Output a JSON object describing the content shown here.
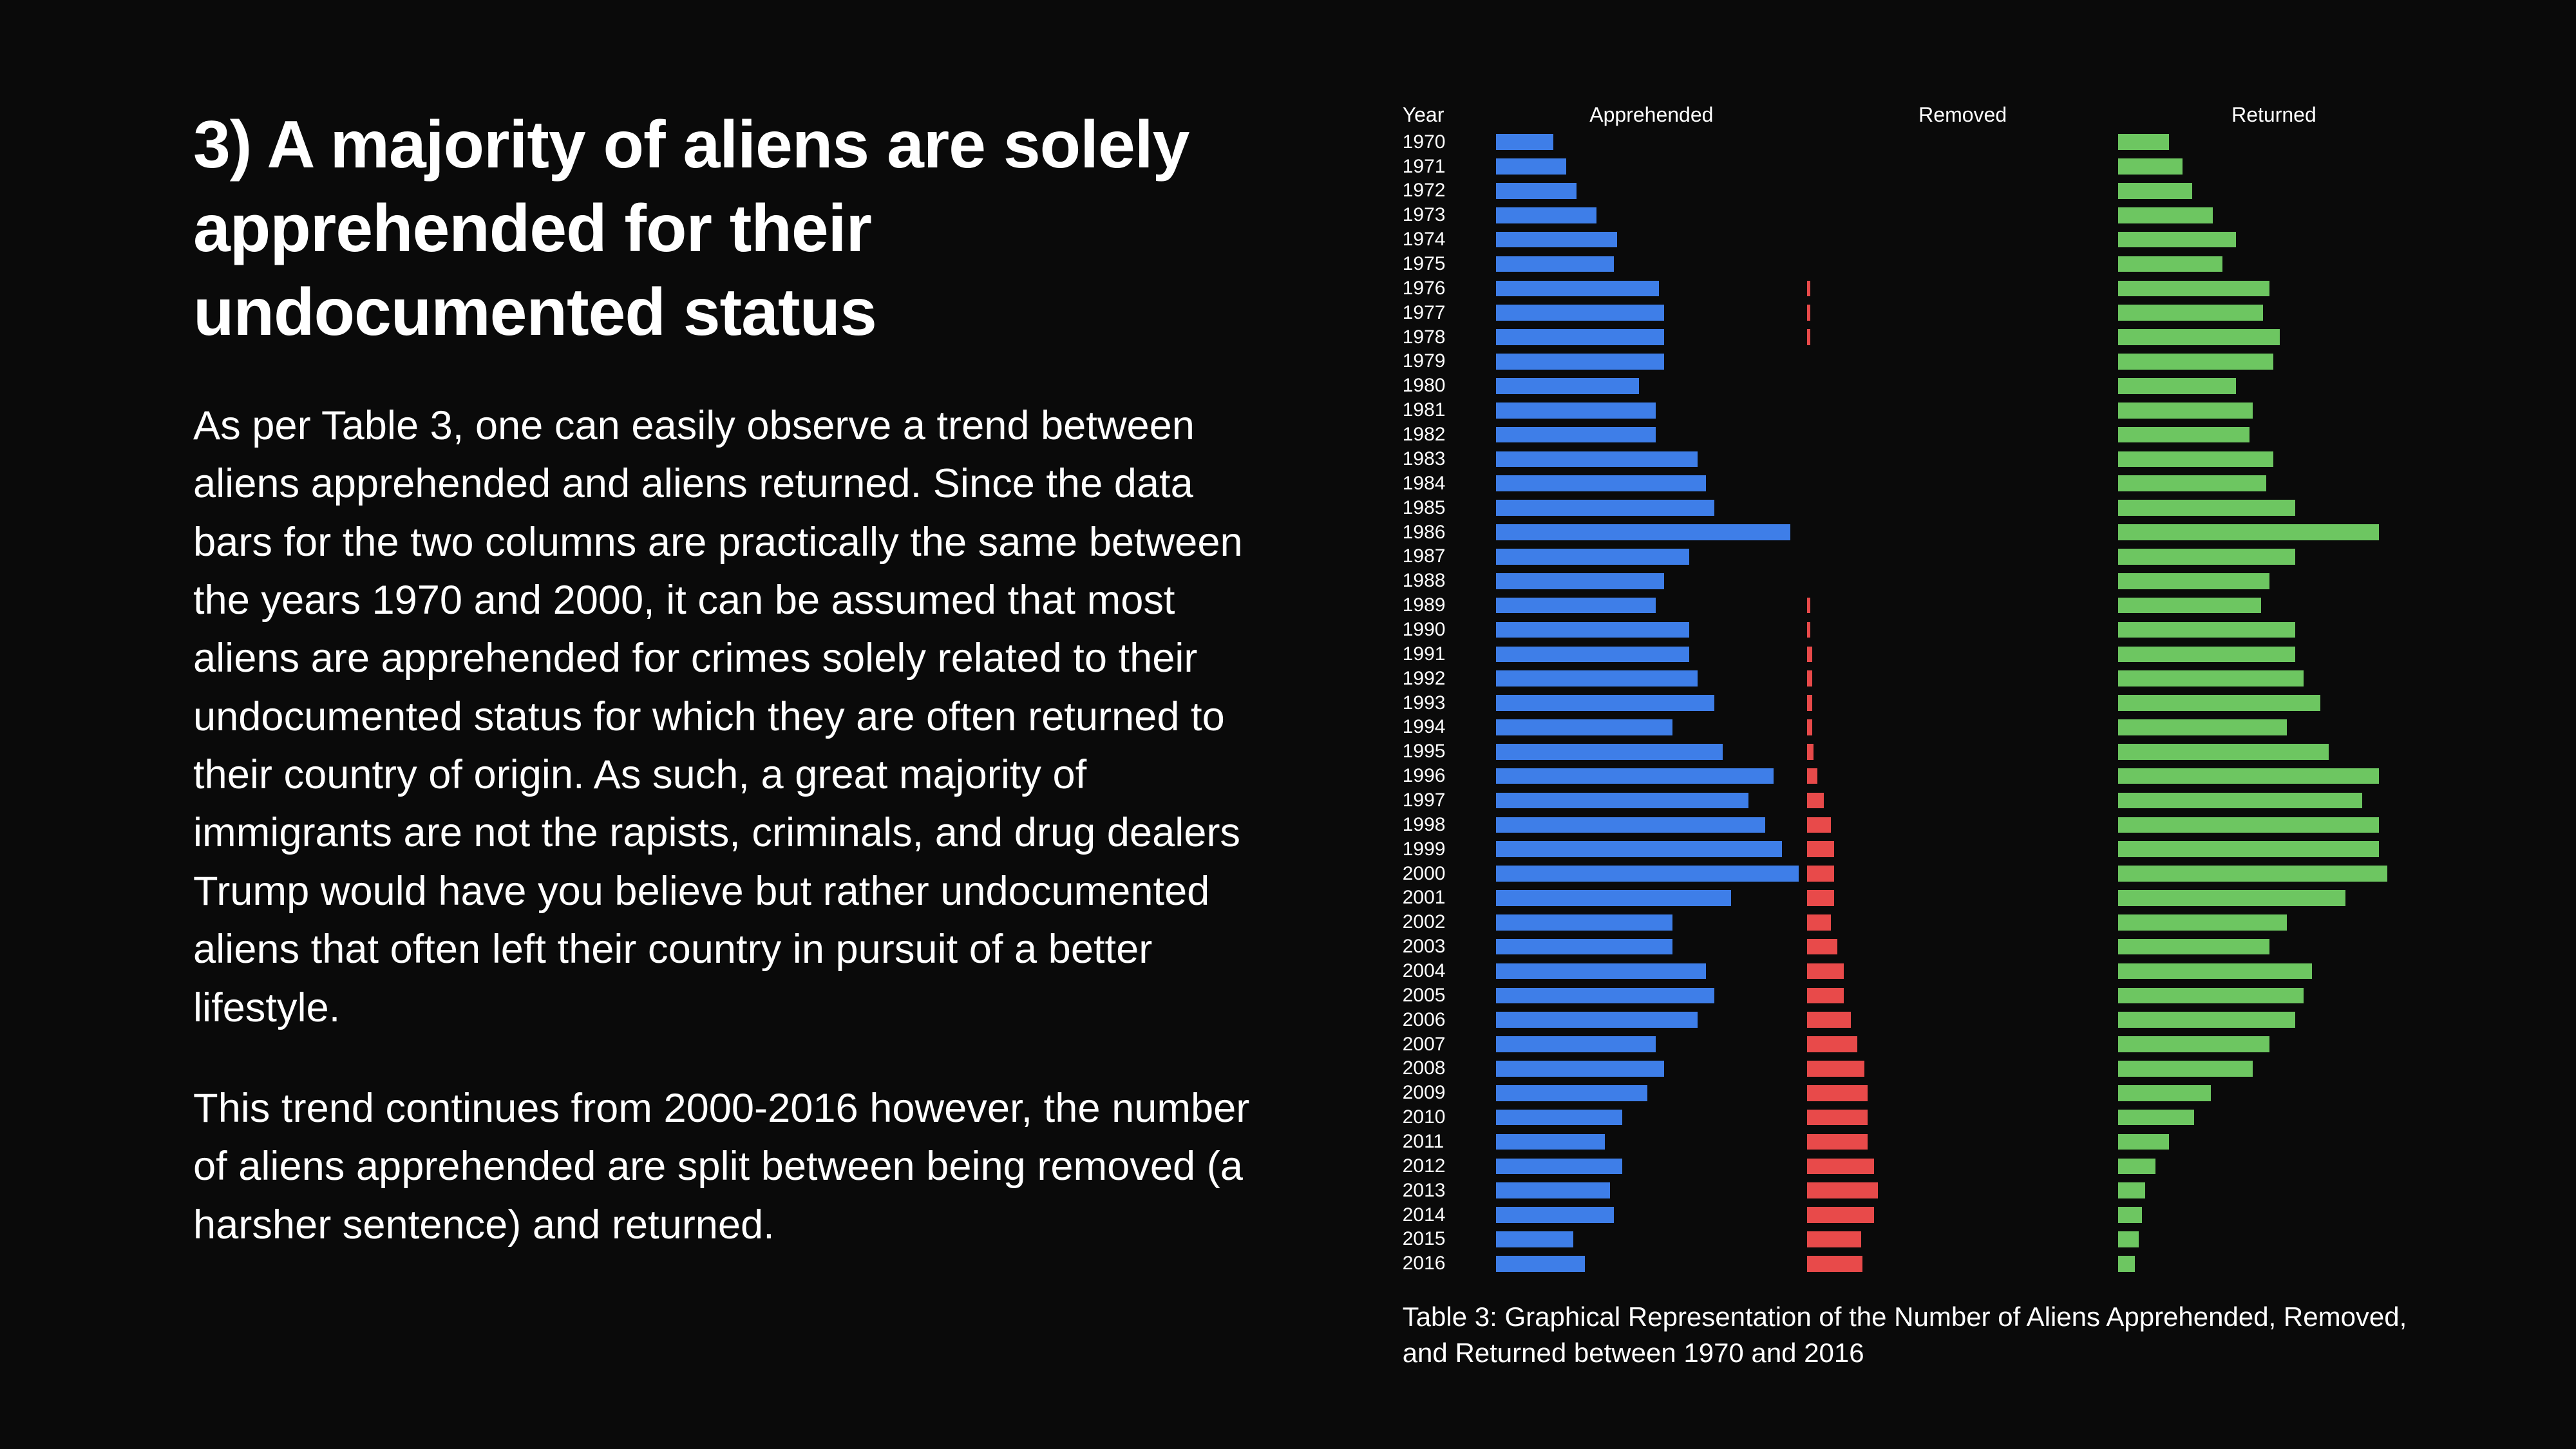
{
  "background_color": "#0a0a0a",
  "text_color": "#ffffff",
  "title": "3) A majority of aliens are solely apprehended for their undocumented status",
  "paragraph1": "As per Table 3, one can easily observe a trend between aliens apprehended and aliens returned. Since the data bars for the two columns are practically the same between the years 1970 and 2000, it can be assumed that most aliens are apprehended for crimes solely related to their undocumented status for which they are often returned to their country of origin. As such, a great majority of immigrants are not the rapists, criminals, and drug dealers Trump would have you believe but rather undocumented aliens that often left their country in pursuit of a better lifestyle.",
  "paragraph2": "This trend continues from 2000-2016 however, the number of aliens apprehended are split between being removed (a harsher sentence) and returned.",
  "chart": {
    "type": "horizontal-bar-table",
    "headers": {
      "year": "Year",
      "apprehended": "Apprehended",
      "removed": "Removed",
      "returned": "Returned"
    },
    "colors": {
      "apprehended": "#3e7ee8",
      "removed": "#e84a4a",
      "returned": "#6dc661"
    },
    "column_flex": {
      "year": 10,
      "apprehended": 30,
      "removed": 30,
      "returned": 30
    },
    "max_value": 185,
    "caption": "Table 3: Graphical Representation of the Number of Aliens Apprehended, Removed, and Returned between 1970 and 2016",
    "rows": [
      {
        "year": "1970",
        "apprehended": 34,
        "removed": 0,
        "returned": 30
      },
      {
        "year": "1971",
        "apprehended": 42,
        "removed": 0,
        "returned": 38
      },
      {
        "year": "1972",
        "apprehended": 48,
        "removed": 0,
        "returned": 44
      },
      {
        "year": "1973",
        "apprehended": 60,
        "removed": 0,
        "returned": 56
      },
      {
        "year": "1974",
        "apprehended": 72,
        "removed": 0,
        "returned": 70
      },
      {
        "year": "1975",
        "apprehended": 70,
        "removed": 0,
        "returned": 62
      },
      {
        "year": "1976",
        "apprehended": 97,
        "removed": 2,
        "returned": 90
      },
      {
        "year": "1977",
        "apprehended": 100,
        "removed": 2,
        "returned": 86
      },
      {
        "year": "1978",
        "apprehended": 100,
        "removed": 2,
        "returned": 96
      },
      {
        "year": "1979",
        "apprehended": 100,
        "removed": 0,
        "returned": 92
      },
      {
        "year": "1980",
        "apprehended": 85,
        "removed": 0,
        "returned": 70
      },
      {
        "year": "1981",
        "apprehended": 95,
        "removed": 0,
        "returned": 80
      },
      {
        "year": "1982",
        "apprehended": 95,
        "removed": 0,
        "returned": 78
      },
      {
        "year": "1983",
        "apprehended": 120,
        "removed": 0,
        "returned": 92
      },
      {
        "year": "1984",
        "apprehended": 125,
        "removed": 0,
        "returned": 88
      },
      {
        "year": "1985",
        "apprehended": 130,
        "removed": 0,
        "returned": 105
      },
      {
        "year": "1986",
        "apprehended": 175,
        "removed": 0,
        "returned": 155
      },
      {
        "year": "1987",
        "apprehended": 115,
        "removed": 0,
        "returned": 105
      },
      {
        "year": "1988",
        "apprehended": 100,
        "removed": 0,
        "returned": 90
      },
      {
        "year": "1989",
        "apprehended": 95,
        "removed": 2,
        "returned": 85
      },
      {
        "year": "1990",
        "apprehended": 115,
        "removed": 2,
        "returned": 105
      },
      {
        "year": "1991",
        "apprehended": 115,
        "removed": 3,
        "returned": 105
      },
      {
        "year": "1992",
        "apprehended": 120,
        "removed": 3,
        "returned": 110
      },
      {
        "year": "1993",
        "apprehended": 130,
        "removed": 3,
        "returned": 120
      },
      {
        "year": "1994",
        "apprehended": 105,
        "removed": 3,
        "returned": 100
      },
      {
        "year": "1995",
        "apprehended": 135,
        "removed": 4,
        "returned": 125
      },
      {
        "year": "1996",
        "apprehended": 165,
        "removed": 6,
        "returned": 155
      },
      {
        "year": "1997",
        "apprehended": 150,
        "removed": 10,
        "returned": 145
      },
      {
        "year": "1998",
        "apprehended": 160,
        "removed": 14,
        "returned": 155
      },
      {
        "year": "1999",
        "apprehended": 170,
        "removed": 16,
        "returned": 155
      },
      {
        "year": "2000",
        "apprehended": 180,
        "removed": 16,
        "returned": 160
      },
      {
        "year": "2001",
        "apprehended": 140,
        "removed": 16,
        "returned": 135
      },
      {
        "year": "2002",
        "apprehended": 105,
        "removed": 14,
        "returned": 100
      },
      {
        "year": "2003",
        "apprehended": 105,
        "removed": 18,
        "returned": 90
      },
      {
        "year": "2004",
        "apprehended": 125,
        "removed": 22,
        "returned": 115
      },
      {
        "year": "2005",
        "apprehended": 130,
        "removed": 22,
        "returned": 110
      },
      {
        "year": "2006",
        "apprehended": 120,
        "removed": 26,
        "returned": 105
      },
      {
        "year": "2007",
        "apprehended": 95,
        "removed": 30,
        "returned": 90
      },
      {
        "year": "2008",
        "apprehended": 100,
        "removed": 34,
        "returned": 80
      },
      {
        "year": "2009",
        "apprehended": 90,
        "removed": 36,
        "returned": 55
      },
      {
        "year": "2010",
        "apprehended": 75,
        "removed": 36,
        "returned": 45
      },
      {
        "year": "2011",
        "apprehended": 65,
        "removed": 36,
        "returned": 30
      },
      {
        "year": "2012",
        "apprehended": 75,
        "removed": 40,
        "returned": 22
      },
      {
        "year": "2013",
        "apprehended": 68,
        "removed": 42,
        "returned": 16
      },
      {
        "year": "2014",
        "apprehended": 70,
        "removed": 40,
        "returned": 14
      },
      {
        "year": "2015",
        "apprehended": 46,
        "removed": 32,
        "returned": 12
      },
      {
        "year": "2016",
        "apprehended": 53,
        "removed": 33,
        "returned": 10
      }
    ]
  }
}
